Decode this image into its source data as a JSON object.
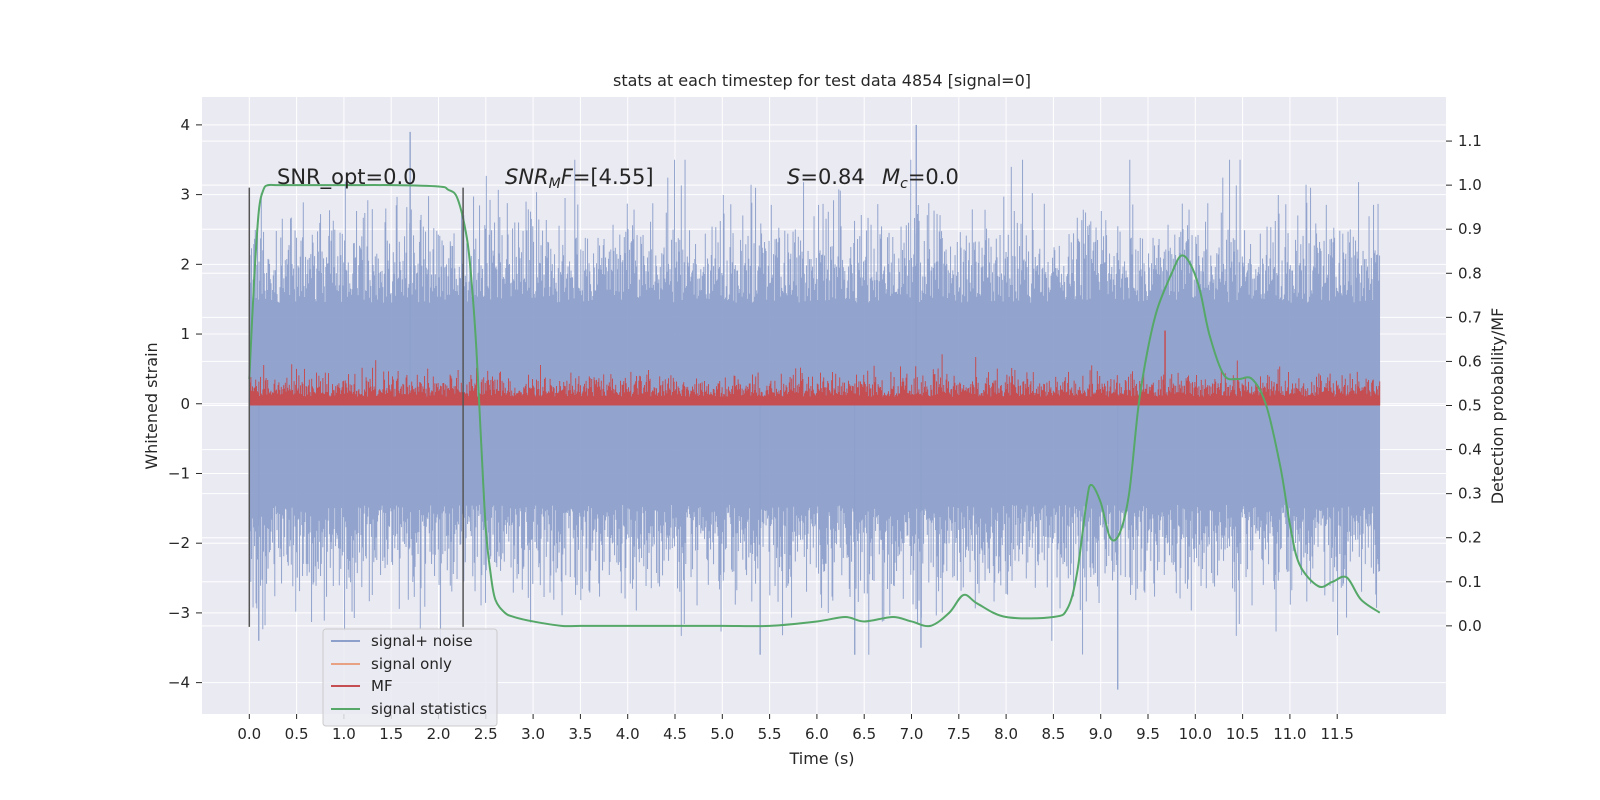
{
  "chart_data": {
    "type": "line",
    "title": "stats at each timestep for test data 4854 [signal=0]",
    "xlabel": "Time (s)",
    "ylabel_left": "Whitened strain",
    "ylabel_right": "Detection probability/MF",
    "xlim": [
      -0.5,
      12.65
    ],
    "ylim_left": [
      -4.45,
      4.4
    ],
    "ylim_right": [
      -0.2,
      1.2
    ],
    "grid": true,
    "x_ticks": [
      0.0,
      0.5,
      1.0,
      1.5,
      2.0,
      2.5,
      3.0,
      3.5,
      4.0,
      4.5,
      5.0,
      5.5,
      6.0,
      6.5,
      7.0,
      7.5,
      8.0,
      8.5,
      9.0,
      9.5,
      10.0,
      10.5,
      11.0,
      11.5
    ],
    "x_tick_labels": [
      "0.0",
      "0.5",
      "1.0",
      "1.5",
      "2.0",
      "2.5",
      "3.0",
      "3.5",
      "4.0",
      "4.5",
      "5.0",
      "5.5",
      "6.0",
      "6.5",
      "7.0",
      "7.5",
      "8.0",
      "8.5",
      "9.0",
      "9.5",
      "10.0",
      "10.5",
      "11.0",
      "11.5"
    ],
    "y_left_ticks": [
      -4,
      -3,
      -2,
      -1,
      0,
      1,
      2,
      3,
      4
    ],
    "y_left_tick_labels": [
      "−4",
      "−3",
      "−2",
      "−1",
      "0",
      "1",
      "2",
      "3",
      "4"
    ],
    "y_right_ticks": [
      0.0,
      0.1,
      0.2,
      0.3,
      0.4,
      0.5,
      0.6,
      0.7,
      0.8,
      0.9,
      1.0,
      1.1
    ],
    "y_right_tick_labels": [
      "0.0",
      "0.1",
      "0.2",
      "0.3",
      "0.4",
      "0.5",
      "0.6",
      "0.7",
      "0.8",
      "0.9",
      "1.0",
      "1.1"
    ],
    "annotations": {
      "snr_opt": "SNR_opt=0.0",
      "snr_mf_prefix": "SNR",
      "snr_mf_sub": "M",
      "snr_mf_suffix": "F",
      "snr_mf_value": "=[4.55]",
      "s_symbol": "S",
      "s_value": "=0.84",
      "mc_symbol": "M",
      "mc_sub": "c",
      "mc_value": "=0.0"
    },
    "vertical_lines": [
      {
        "x": 0.0,
        "y_range": [
          -3.2,
          3.1
        ]
      },
      {
        "x": 2.26,
        "y_range": [
          -3.2,
          3.1
        ]
      }
    ],
    "legend": {
      "placement": "lower-left",
      "entries": [
        {
          "label": "signal+ noise",
          "color": "#8da0cb"
        },
        {
          "label": "signal only",
          "color": "#e8a183"
        },
        {
          "label": "MF",
          "color": "#c44e52"
        },
        {
          "label": "signal statistics",
          "color": "#55a868"
        }
      ]
    },
    "colors": {
      "background": "#eaeaf2",
      "grid": "#ffffff",
      "noise": "#8da0cb",
      "mf": "#c44e52",
      "stat": "#55a868",
      "vline": "#555555"
    },
    "series": [
      {
        "name": "signal+ noise",
        "axis": "left",
        "style": "dense-noise",
        "x_range": [
          0.0,
          11.95
        ],
        "typical_envelope": [
          -2.2,
          2.3
        ],
        "extreme_min": -4.1,
        "extreme_max": 4.0
      },
      {
        "name": "MF",
        "axis": "right",
        "style": "dense-noise",
        "x_range": [
          0.0,
          11.95
        ],
        "baseline": 0.5,
        "typical_top": 0.6,
        "extreme_max": 0.67
      },
      {
        "name": "signal statistics",
        "axis": "right",
        "x": [
          0.0,
          0.05,
          0.1,
          0.15,
          0.2,
          0.3,
          0.5,
          1.0,
          1.5,
          2.0,
          2.1,
          2.2,
          2.3,
          2.35,
          2.4,
          2.45,
          2.5,
          2.55,
          2.6,
          2.7,
          2.8,
          3.0,
          3.3,
          3.5,
          4.0,
          4.5,
          5.0,
          5.5,
          6.0,
          6.3,
          6.5,
          6.8,
          7.0,
          7.2,
          7.4,
          7.55,
          7.7,
          8.0,
          8.5,
          8.65,
          8.75,
          8.85,
          8.9,
          9.0,
          9.1,
          9.2,
          9.3,
          9.4,
          9.5,
          9.6,
          9.75,
          9.85,
          9.95,
          10.05,
          10.15,
          10.3,
          10.45,
          10.6,
          10.75,
          10.9,
          11.0,
          11.1,
          11.3,
          11.45,
          11.6,
          11.75,
          11.95
        ],
        "y": [
          0.56,
          0.78,
          0.94,
          0.99,
          1.0,
          1.0,
          1.0,
          1.0,
          1.0,
          0.997,
          0.99,
          0.97,
          0.88,
          0.78,
          0.63,
          0.42,
          0.22,
          0.12,
          0.06,
          0.03,
          0.02,
          0.01,
          0.0,
          0.0,
          0.0,
          0.0,
          0.0,
          0.0,
          0.01,
          0.02,
          0.01,
          0.02,
          0.01,
          0.0,
          0.03,
          0.07,
          0.05,
          0.02,
          0.02,
          0.04,
          0.12,
          0.28,
          0.32,
          0.28,
          0.2,
          0.21,
          0.3,
          0.5,
          0.63,
          0.72,
          0.8,
          0.84,
          0.82,
          0.76,
          0.66,
          0.57,
          0.56,
          0.56,
          0.5,
          0.36,
          0.23,
          0.14,
          0.09,
          0.1,
          0.11,
          0.06,
          0.03
        ]
      }
    ]
  }
}
